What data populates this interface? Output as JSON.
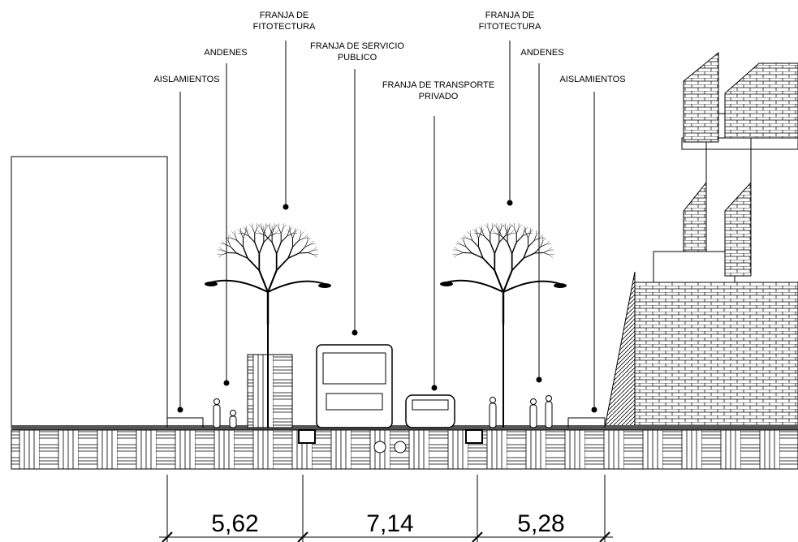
{
  "labels": [
    {
      "lines": [
        "AISLAMIENTOS"
      ]
    },
    {
      "lines": [
        "ANDENES"
      ]
    },
    {
      "lines": [
        "FRANJA DE",
        "FITOTECTURA"
      ]
    },
    {
      "lines": [
        "FRANJA DE SERVICIO",
        "PUBLICO"
      ]
    },
    {
      "lines": [
        "FRANJA DE TRANSPORTE",
        "PRIVADO"
      ]
    },
    {
      "lines": [
        "FRANJA DE",
        "FITOTECTURA"
      ]
    },
    {
      "lines": [
        "ANDENES"
      ]
    },
    {
      "lines": [
        "AISLAMIENTOS"
      ]
    }
  ],
  "dimensions": [
    "5,62",
    "7,14",
    "5,28"
  ]
}
